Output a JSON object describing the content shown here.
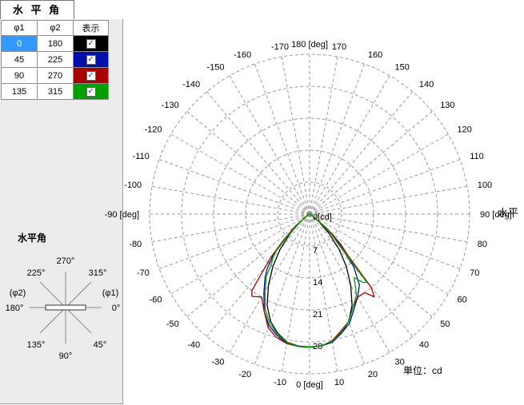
{
  "tab": {
    "label": "水 平 角"
  },
  "table": {
    "headers": [
      "φ1",
      "φ2",
      "表示"
    ],
    "rows": [
      {
        "phi1": "0",
        "phi2": "180",
        "color": "#000000",
        "checked": true,
        "selected": true
      },
      {
        "phi1": "45",
        "phi2": "225",
        "color": "#0010a8",
        "checked": true,
        "selected": false
      },
      {
        "phi1": "90",
        "phi2": "270",
        "color": "#a80000",
        "checked": true,
        "selected": false
      },
      {
        "phi1": "135",
        "phi2": "315",
        "color": "#00a000",
        "checked": true,
        "selected": false
      }
    ]
  },
  "diagram": {
    "title": "水平角",
    "labels": {
      "a270": "270°",
      "a225": "225°",
      "a315": "315°",
      "phi2": "(φ2)",
      "phi1": "(φ1)",
      "a180": "180°",
      "a0": "0°",
      "a135": "135°",
      "a45": "45°",
      "a90": "90°"
    }
  },
  "chart_data": {
    "type": "polar",
    "plane_label": "水平",
    "unit_label": "単位：cd",
    "angle_labels": [
      "180 [deg]",
      "170",
      "160",
      "150",
      "140",
      "130",
      "120",
      "110",
      "100",
      "90 [deg]",
      "80",
      "70",
      "60",
      "50",
      "40",
      "30",
      "20",
      "10",
      "0 [deg]",
      "-10",
      "-20",
      "-30",
      "-40",
      "-50",
      "-60",
      "-70",
      "-80",
      "-90 [deg]",
      "-100",
      "-110",
      "-120",
      "-130",
      "-140",
      "-150",
      "-160",
      "-170"
    ],
    "radial_ticks": [
      "0[cd]",
      "7",
      "14",
      "21",
      "28"
    ],
    "rmax": 35,
    "series": [
      {
        "color": "#000000",
        "points": [
          [
            -90,
            0
          ],
          [
            -60,
            0.4
          ],
          [
            -50,
            2.8
          ],
          [
            -45,
            6
          ],
          [
            -40,
            10
          ],
          [
            -35,
            14
          ],
          [
            -30,
            18
          ],
          [
            -25,
            22
          ],
          [
            -20,
            25
          ],
          [
            -15,
            27
          ],
          [
            -10,
            28.5
          ],
          [
            -5,
            29
          ],
          [
            0,
            29.2
          ],
          [
            5,
            29
          ],
          [
            10,
            28.5
          ],
          [
            15,
            27
          ],
          [
            20,
            25
          ],
          [
            25,
            22
          ],
          [
            30,
            18
          ],
          [
            35,
            14
          ],
          [
            40,
            10
          ],
          [
            45,
            6
          ],
          [
            50,
            2.8
          ],
          [
            60,
            0.4
          ],
          [
            90,
            0
          ]
        ]
      },
      {
        "color": "#0010a8",
        "points": [
          [
            -90,
            0
          ],
          [
            -60,
            0.5
          ],
          [
            -50,
            3.5
          ],
          [
            -45,
            8
          ],
          [
            -42,
            12
          ],
          [
            -40,
            13
          ],
          [
            -38,
            15
          ],
          [
            -35,
            17
          ],
          [
            -30,
            20
          ],
          [
            -25,
            23.5
          ],
          [
            -20,
            26
          ],
          [
            -15,
            27.5
          ],
          [
            -10,
            28.8
          ],
          [
            -5,
            29
          ],
          [
            0,
            29.1
          ],
          [
            5,
            29
          ],
          [
            10,
            28.5
          ],
          [
            15,
            27
          ],
          [
            20,
            25.5
          ],
          [
            25,
            23
          ],
          [
            30,
            21
          ],
          [
            35,
            19
          ],
          [
            40,
            15
          ],
          [
            45,
            9
          ],
          [
            48,
            7
          ],
          [
            50,
            4.5
          ],
          [
            60,
            0.6
          ],
          [
            90,
            0
          ]
        ]
      },
      {
        "color": "#a80000",
        "points": [
          [
            -90,
            0
          ],
          [
            -60,
            0.6
          ],
          [
            -50,
            4
          ],
          [
            -45,
            8
          ],
          [
            -42,
            12.5
          ],
          [
            -40,
            15
          ],
          [
            -37,
            21
          ],
          [
            -35,
            22
          ],
          [
            -30,
            21
          ],
          [
            -25,
            23.5
          ],
          [
            -20,
            26.5
          ],
          [
            -15,
            28
          ],
          [
            -10,
            28.8
          ],
          [
            -5,
            29.1
          ],
          [
            0,
            29.2
          ],
          [
            5,
            29
          ],
          [
            10,
            28.2
          ],
          [
            15,
            26.5
          ],
          [
            20,
            25
          ],
          [
            25,
            22.5
          ],
          [
            30,
            21
          ],
          [
            35,
            21
          ],
          [
            38,
            23
          ],
          [
            40,
            21
          ],
          [
            43,
            12
          ],
          [
            46,
            9.5
          ],
          [
            50,
            5
          ],
          [
            60,
            0.7
          ],
          [
            90,
            0
          ]
        ]
      },
      {
        "color": "#00a000",
        "points": [
          [
            -90,
            0
          ],
          [
            -60,
            0.5
          ],
          [
            -50,
            3.2
          ],
          [
            -45,
            7
          ],
          [
            -42,
            11
          ],
          [
            -40,
            12.5
          ],
          [
            -37,
            14
          ],
          [
            -35,
            16.5
          ],
          [
            -30,
            19.5
          ],
          [
            -25,
            23
          ],
          [
            -20,
            25.5
          ],
          [
            -15,
            27.2
          ],
          [
            -10,
            28.6
          ],
          [
            -5,
            29.1
          ],
          [
            0,
            29.2
          ],
          [
            5,
            29
          ],
          [
            10,
            28.3
          ],
          [
            15,
            26.8
          ],
          [
            20,
            25
          ],
          [
            25,
            22.5
          ],
          [
            30,
            20.5
          ],
          [
            35,
            17
          ],
          [
            38,
            19
          ],
          [
            40,
            19.5
          ],
          [
            43,
            10
          ],
          [
            47,
            6.5
          ],
          [
            50,
            4
          ],
          [
            60,
            0.5
          ],
          [
            90,
            0
          ]
        ]
      }
    ]
  }
}
